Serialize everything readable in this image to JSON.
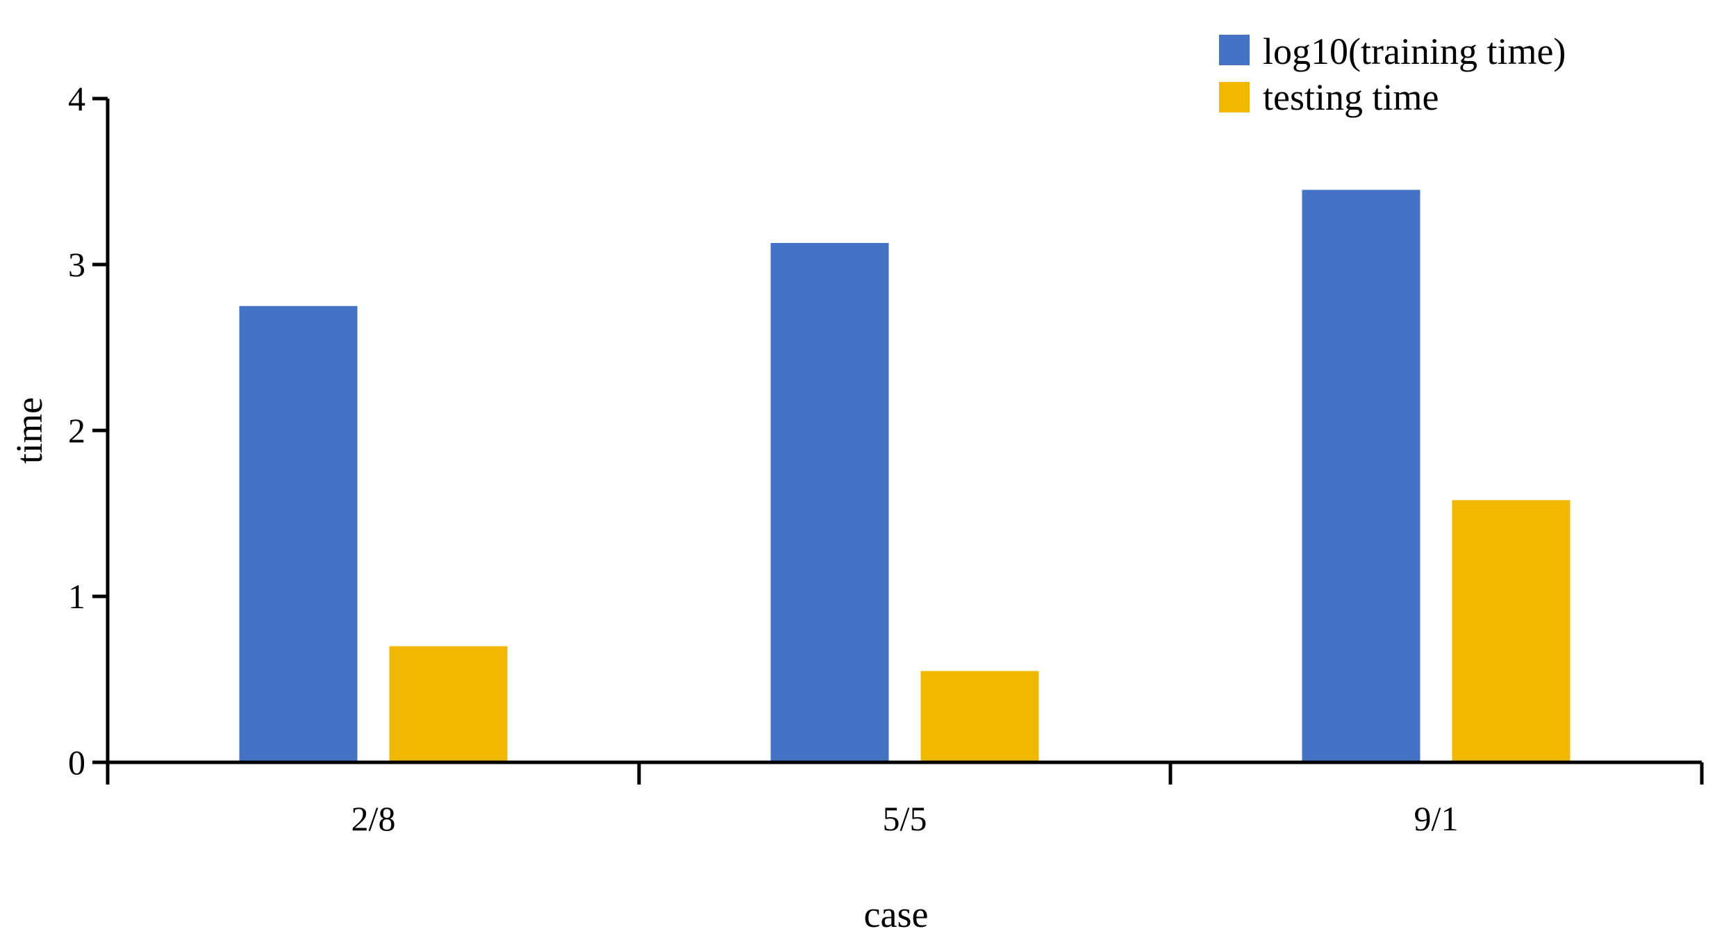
{
  "chart_data": {
    "type": "bar",
    "categories": [
      "2/8",
      "5/5",
      "9/1"
    ],
    "series": [
      {
        "name": "log10(training time)",
        "values": [
          2.75,
          3.13,
          3.45
        ],
        "color": "#4472c4"
      },
      {
        "name": "testing time",
        "values": [
          0.7,
          0.55,
          1.58
        ],
        "color": "#f0b800"
      }
    ],
    "xlabel": "case",
    "ylabel": "time",
    "ylim": [
      0,
      4
    ],
    "yticks": [
      "0",
      "1",
      "2",
      "3",
      "4"
    ],
    "grid": false,
    "legend_position": "top-right"
  }
}
